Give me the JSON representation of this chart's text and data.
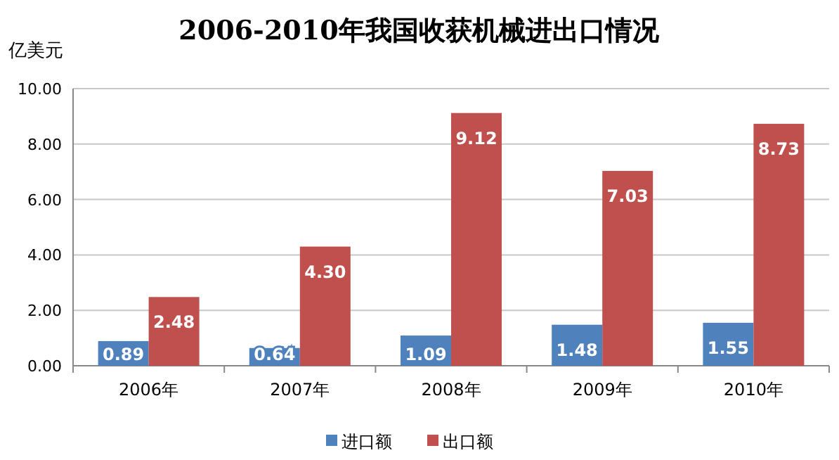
{
  "chart_data": {
    "type": "bar",
    "title": "2006-2010年我国收获机械进出口情况",
    "ylabel": "亿美元",
    "categories": [
      "2006年",
      "2007年",
      "2008年",
      "2009年",
      "2010年"
    ],
    "series": [
      {
        "name": "进口额",
        "color": "#4f81bd",
        "values": [
          0.89,
          0.64,
          1.09,
          1.48,
          1.55
        ],
        "value_labels": [
          "0.89",
          "0.64",
          "1.09",
          "1.48",
          "1.55"
        ]
      },
      {
        "name": "出口额",
        "color": "#c0504d",
        "values": [
          2.48,
          4.3,
          9.12,
          7.03,
          8.73
        ],
        "value_labels": [
          "2.48",
          "4.30",
          "9.12",
          "7.03",
          "8.73"
        ]
      }
    ],
    "ylim": [
      0,
      10
    ],
    "yticks": [
      {
        "value": 0,
        "label": "0.00"
      },
      {
        "value": 2,
        "label": "2.00"
      },
      {
        "value": 4,
        "label": "4.00"
      },
      {
        "value": 6,
        "label": "6.00"
      },
      {
        "value": 8,
        "label": "8.00"
      },
      {
        "value": 10,
        "label": "10.00"
      }
    ],
    "grid": "y",
    "legend": "bottom"
  }
}
